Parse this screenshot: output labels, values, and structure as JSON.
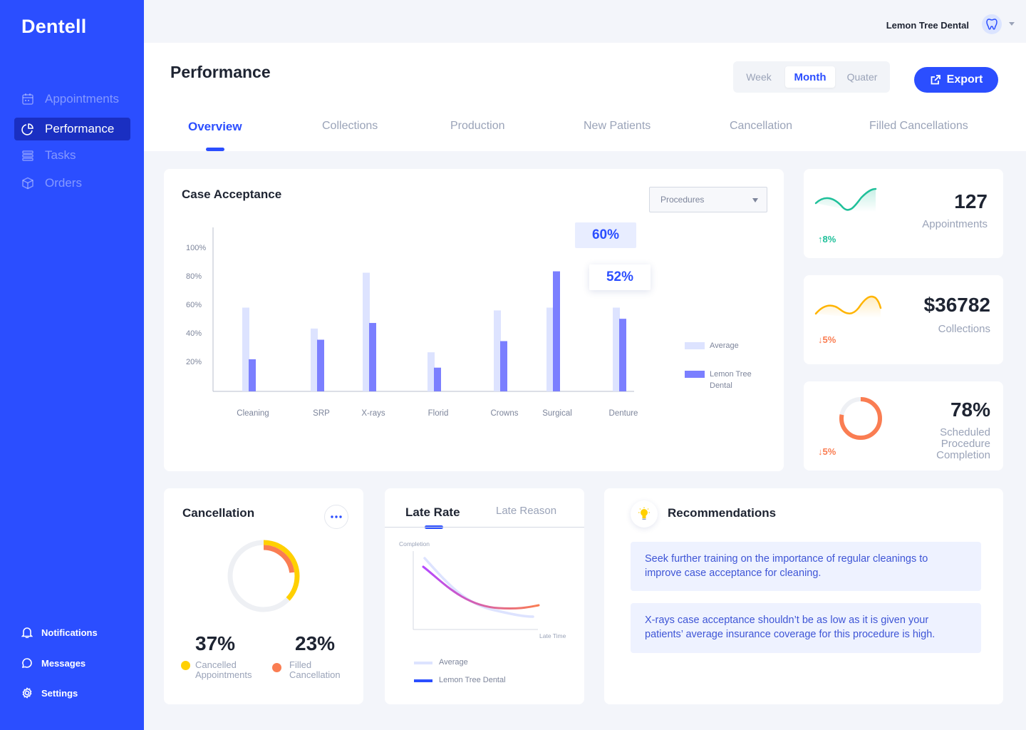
{
  "app": {
    "name": "Dentell"
  },
  "sidebar": {
    "items": [
      {
        "label": "Appointments",
        "icon": "calendar-icon"
      },
      {
        "label": "Performance",
        "icon": "pie-chart-icon",
        "active": true
      },
      {
        "label": "Tasks",
        "icon": "list-icon"
      },
      {
        "label": "Orders",
        "icon": "box-icon"
      }
    ],
    "bottom": [
      {
        "label": "Notifications",
        "icon": "bell-icon"
      },
      {
        "label": "Messages",
        "icon": "chat-icon"
      },
      {
        "label": "Settings",
        "icon": "gear-icon"
      }
    ]
  },
  "header": {
    "clinic": "Lemon Tree Dental",
    "title": "Performance",
    "periods": [
      "Week",
      "Month",
      "Quater"
    ],
    "selected_period": "Month",
    "export_label": "Export",
    "tabs": [
      "Overview",
      "Collections",
      "Production",
      "New Patients",
      "Cancellation",
      "Filled Cancellations"
    ]
  },
  "case_acceptance": {
    "title": "Case Acceptance",
    "filter": "Procedures",
    "tooltip_avg": "60%",
    "tooltip_clinic": "52%",
    "legend": [
      "Average",
      "Lemon Tree Dental"
    ]
  },
  "chart_data": {
    "type": "bar",
    "categories": [
      "Cleaning",
      "SRP",
      "X-rays",
      "Florid",
      "Crowns",
      "Surgical",
      "Denture"
    ],
    "series": [
      {
        "name": "Average",
        "values": [
          60,
          45,
          85,
          28,
          58,
          60,
          60
        ]
      },
      {
        "name": "Lemon Tree Dental",
        "values": [
          23,
          37,
          49,
          17,
          36,
          86,
          52
        ]
      }
    ],
    "ytick_labels": [
      "100%",
      "80%",
      "60%",
      "40%",
      "20%"
    ],
    "ylim": [
      0,
      120
    ],
    "colors": {
      "Average": "#dde3ff",
      "Lemon Tree Dental": "#7b7fff"
    }
  },
  "stats": [
    {
      "value": "127",
      "label": "Appointments",
      "trend": "8%",
      "trend_dir": "up",
      "color": "#1fc09a"
    },
    {
      "value": "$36782",
      "label": "Collections",
      "trend": "5%",
      "trend_dir": "down",
      "color": "#fa7d52"
    },
    {
      "value": "78%",
      "label": "Scheduled Procedure Completion",
      "trend": "5%",
      "trend_dir": "down",
      "color": "#fa7d52",
      "progress": 78
    }
  ],
  "cancellation": {
    "title": "Cancellation",
    "cancelled_value": "37%",
    "cancelled_label": "Cancelled Appointments",
    "filled_value": "23%",
    "filled_label": "Filled Cancellation",
    "cancelled_pct": 37,
    "filled_pct": 23
  },
  "late": {
    "tabs": [
      "Late Rate",
      "Late Reason"
    ],
    "y_axis": "Completion",
    "x_axis": "Late Time",
    "legend": [
      "Average",
      "Lemon Tree Dental"
    ]
  },
  "recommendations": {
    "title": "Recommendations",
    "items": [
      "Seek further training on the importance of regular cleanings to improve case acceptance for cleaning.",
      "X-rays case acceptance shouldn’t be as low as it is given your patients’ average insurance coverage for this procedure is high."
    ]
  }
}
